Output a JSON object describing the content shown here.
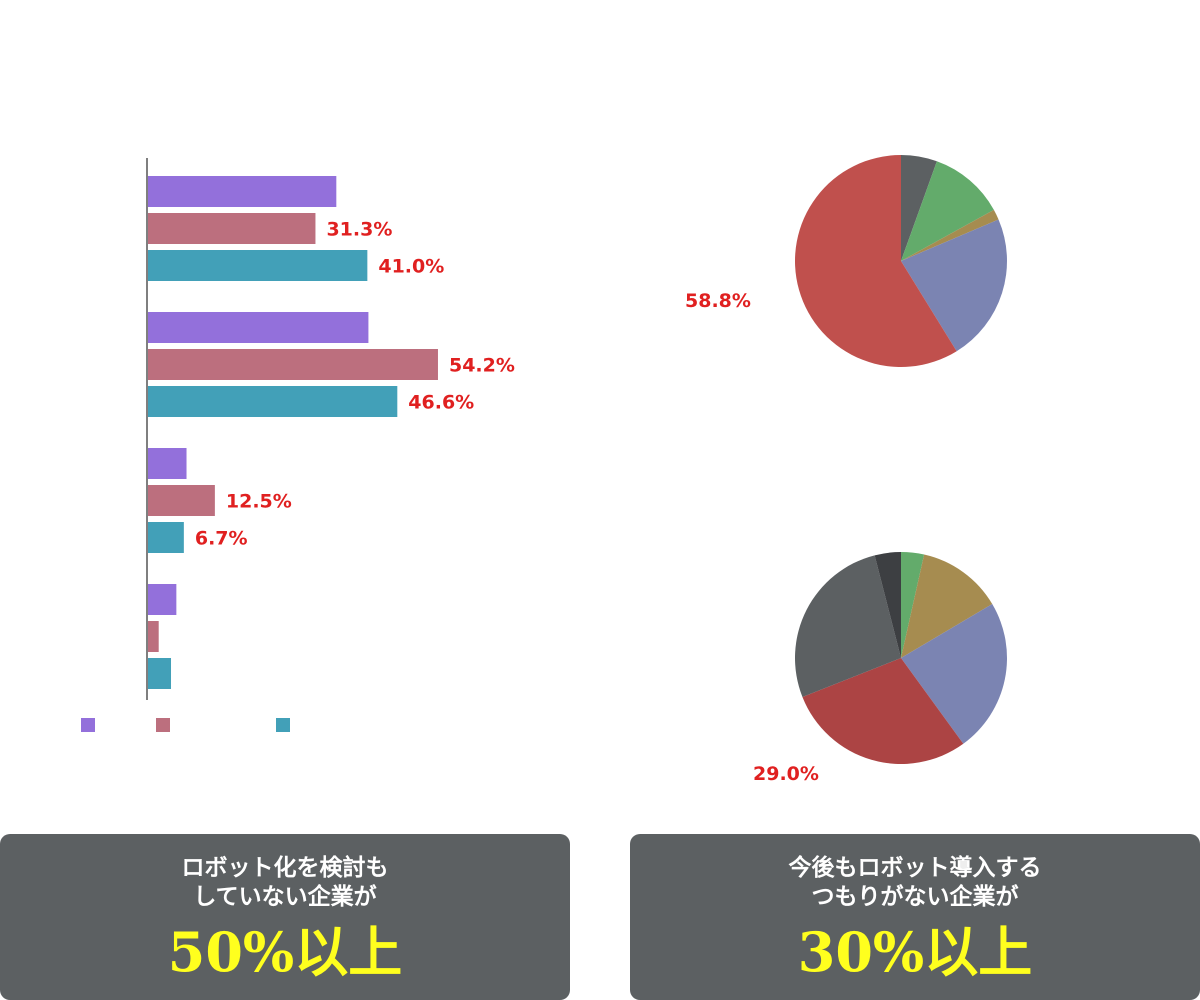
{
  "chart_data": [
    {
      "type": "bar",
      "orientation": "horizontal",
      "categories": [
        "",
        "",
        "",
        ""
      ],
      "series": [
        {
          "values": [
            35.2,
            41.2,
            7.2,
            5.3
          ],
          "color": "#9370db"
        },
        {
          "values": [
            31.3,
            54.2,
            12.5,
            2.0
          ],
          "color": "#bc6f7e"
        },
        {
          "values": [
            41.0,
            46.6,
            6.7,
            4.3
          ],
          "color": "#42a0b8"
        }
      ],
      "data_labels": [
        [
          "",
          "",
          "",
          ""
        ],
        [
          "31.3%",
          "54.2%",
          "12.5%",
          ""
        ],
        [
          "41.0%",
          "46.6%",
          "6.7%",
          ""
        ]
      ],
      "xlim": [
        0,
        100
      ],
      "legend_position": "bottom-left",
      "grid": false
    },
    {
      "type": "pie",
      "slices": [
        {
          "value": 5.5,
          "color": "#5c6062"
        },
        {
          "value": 11.5,
          "color": "#63ab6b"
        },
        {
          "value": 1.6,
          "color": "#a68c50"
        },
        {
          "value": 22.6,
          "color": "#7b84b2"
        },
        {
          "value": 58.8,
          "color": "#c0504d"
        }
      ],
      "labels": [
        {
          "slice": 4,
          "text": "58.8%"
        }
      ]
    },
    {
      "type": "pie",
      "slices": [
        {
          "value": 3.5,
          "color": "#63ab6b"
        },
        {
          "value": 13.0,
          "color": "#a68c50"
        },
        {
          "value": 23.5,
          "color": "#7b84b2"
        },
        {
          "value": 29.0,
          "color": "#ac4444"
        },
        {
          "value": 27.0,
          "color": "#5c6062"
        },
        {
          "value": 4.0,
          "color": "#3d3f42"
        }
      ],
      "labels": [
        {
          "slice": 3,
          "text": "29.0%"
        }
      ]
    }
  ],
  "callouts": {
    "left": {
      "line1": "ロボット化を検討も",
      "line2": "していない企業が",
      "highlight": "50%以上"
    },
    "right": {
      "line1": "今後もロボット導入する",
      "line2": "つもりがない企業が",
      "highlight": "30%以上"
    }
  },
  "colors": {
    "label_red": "#e02020",
    "highlight_yellow": "#ffff1e",
    "callout_bg": "#5c6062"
  }
}
